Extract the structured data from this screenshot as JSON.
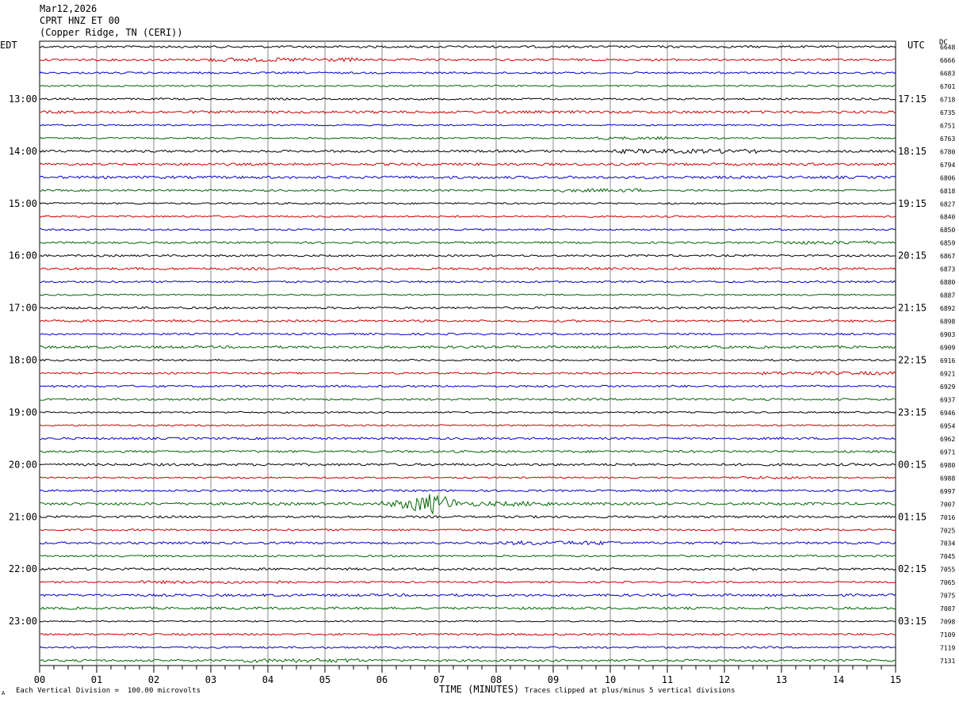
{
  "header": {
    "date": "Mar12,2026",
    "station": "CPRT HNZ ET 00",
    "location": "(Copper Ridge, TN (CERI))"
  },
  "left_tz": "EDT",
  "right_tz": "UTC",
  "dc_label": "DC",
  "footer": {
    "scale_note": "Each Vertical Division =  100.00 microvolts",
    "clip_note": "Traces clipped at plus/minus 5 vertical divisions",
    "corner_mark": "A"
  },
  "colors": {
    "trace_cycle": [
      "#000000",
      "#cc0000",
      "#0000cc",
      "#006600"
    ],
    "grid": "#888888"
  },
  "chart_data": {
    "type": "line",
    "title": "CPRT HNZ ET 00",
    "xlabel": "TIME (MINUTES)",
    "xlim": [
      0,
      15
    ],
    "x_ticks": [
      "00",
      "01",
      "02",
      "03",
      "04",
      "05",
      "06",
      "07",
      "08",
      "09",
      "10",
      "11",
      "12",
      "13",
      "14",
      "15"
    ],
    "left_time_labels": [
      "13:00",
      "14:00",
      "15:00",
      "16:00",
      "17:00",
      "18:00",
      "19:00",
      "20:00",
      "21:00",
      "22:00",
      "23:00"
    ],
    "right_time_labels": [
      "17:15",
      "18:15",
      "19:15",
      "20:15",
      "21:15",
      "22:15",
      "23:15",
      "00:15",
      "01:15",
      "02:15",
      "03:15"
    ],
    "dc_offsets": [
      "6648",
      "6666",
      "6683",
      "6701",
      "6718",
      "6735",
      "6751",
      "6763",
      "6780",
      "6794",
      "6806",
      "6818",
      "6827",
      "6840",
      "6850",
      "6859",
      "6867",
      "6873",
      "6880",
      "6887",
      "6892",
      "6898",
      "6903",
      "6909",
      "6916",
      "6921",
      "6929",
      "6937",
      "6946",
      "6954",
      "6962",
      "6971",
      "6980",
      "6988",
      "6997",
      "7007",
      "7016",
      "7025",
      "7034",
      "7045",
      "7055",
      "7065",
      "7075",
      "7087",
      "7098",
      "7109",
      "7119",
      "7131"
    ],
    "event": {
      "trace_index": 35,
      "minute_start": 6.0,
      "minute_peak": 6.9,
      "minute_end": 7.3
    },
    "trace_count": 48
  }
}
